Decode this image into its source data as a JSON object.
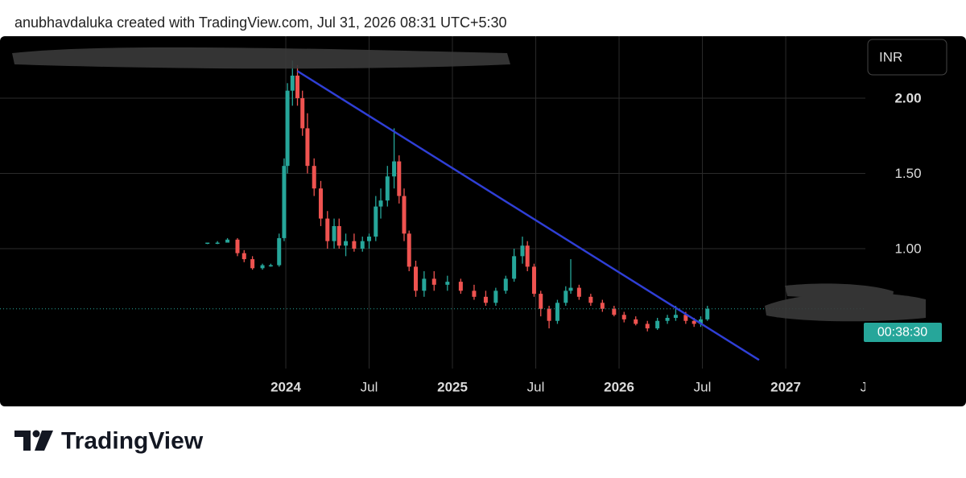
{
  "caption": "anubhavdaluka created with TradingView.com, Jul 31, 2026 08:31 UTC+5:30",
  "brand": "TradingView",
  "chart_data": {
    "type": "candlestick",
    "currency": "INR",
    "countdown": "00:38:30",
    "up_color": "#26a69a",
    "down_color": "#ef5350",
    "grid": true,
    "xlim": [
      2022.285,
      2027.478
    ],
    "xticks": [
      {
        "value": 2024,
        "label": "2024"
      },
      {
        "value": 2024.5,
        "label": "Jul"
      },
      {
        "value": 2025,
        "label": "2025"
      },
      {
        "value": 2025.5,
        "label": "Jul"
      },
      {
        "value": 2026,
        "label": "2026"
      },
      {
        "value": 2026.5,
        "label": "Jul"
      },
      {
        "value": 2027,
        "label": "2027"
      },
      {
        "value": 2027.5,
        "label": "Jul"
      }
    ],
    "ylim": [
      0.203,
      2.412
    ],
    "yticks": [
      {
        "value": 1,
        "label": "1.00"
      },
      {
        "value": 1.5,
        "label": "1.50"
      },
      {
        "value": 2,
        "label": "2.00"
      }
    ],
    "x": [
      2023.53,
      2023.59,
      2023.65,
      2023.71,
      2023.75,
      2023.8,
      2023.86,
      2023.91,
      2023.96,
      2023.99,
      2024.01,
      2024.04,
      2024.07,
      2024.1,
      2024.13,
      2024.17,
      2024.21,
      2024.25,
      2024.29,
      2024.32,
      2024.36,
      2024.41,
      2024.46,
      2024.5,
      2024.54,
      2024.57,
      2024.61,
      2024.65,
      2024.68,
      2024.71,
      2024.74,
      2024.78,
      2024.83,
      2024.89,
      2024.97,
      2025.05,
      2025.13,
      2025.2,
      2025.26,
      2025.32,
      2025.37,
      2025.42,
      2025.45,
      2025.49,
      2025.53,
      2025.58,
      2025.63,
      2025.68,
      2025.71,
      2025.76,
      2025.83,
      2025.9,
      2025.97,
      2026.03,
      2026.1,
      2026.17,
      2026.23,
      2026.29,
      2026.34,
      2026.4,
      2026.45,
      2026.49,
      2026.53
    ],
    "open": [
      1.04,
      1.04,
      1.04,
      1.06,
      0.97,
      0.93,
      0.87,
      0.89,
      0.89,
      1.07,
      1.55,
      2.05,
      2.15,
      2.0,
      1.8,
      1.55,
      1.4,
      1.2,
      1.05,
      1.15,
      1.02,
      1.05,
      1.0,
      1.05,
      1.08,
      1.28,
      1.32,
      1.48,
      1.58,
      1.35,
      1.1,
      0.88,
      0.72,
      0.8,
      0.76,
      0.78,
      0.72,
      0.68,
      0.64,
      0.72,
      0.8,
      0.95,
      1.02,
      0.88,
      0.7,
      0.6,
      0.52,
      0.64,
      0.72,
      0.74,
      0.68,
      0.64,
      0.6,
      0.56,
      0.53,
      0.5,
      0.47,
      0.52,
      0.54,
      0.56,
      0.52,
      0.5,
      0.53
    ],
    "high": [
      1.04,
      1.05,
      1.07,
      1.07,
      0.99,
      0.95,
      0.9,
      0.9,
      1.1,
      1.6,
      2.1,
      2.25,
      2.22,
      2.05,
      1.9,
      1.6,
      1.45,
      1.25,
      1.2,
      1.2,
      1.1,
      1.1,
      1.08,
      1.1,
      1.35,
      1.4,
      1.55,
      1.8,
      1.62,
      1.4,
      1.12,
      0.92,
      0.85,
      0.85,
      0.82,
      0.8,
      0.76,
      0.72,
      0.74,
      0.82,
      1.0,
      1.08,
      1.05,
      0.9,
      0.72,
      0.62,
      0.66,
      0.75,
      0.93,
      0.76,
      0.7,
      0.66,
      0.62,
      0.58,
      0.55,
      0.52,
      0.54,
      0.56,
      0.62,
      0.58,
      0.54,
      0.55,
      0.62
    ],
    "low": [
      1.03,
      1.03,
      1.04,
      0.95,
      0.91,
      0.86,
      0.86,
      0.88,
      0.88,
      1.05,
      1.5,
      1.95,
      1.95,
      1.75,
      1.5,
      1.35,
      1.15,
      1.0,
      1.0,
      1.0,
      0.95,
      0.98,
      0.98,
      1.0,
      1.05,
      1.2,
      1.28,
      1.4,
      1.3,
      1.05,
      0.85,
      0.68,
      0.68,
      0.72,
      0.72,
      0.7,
      0.66,
      0.62,
      0.62,
      0.7,
      0.78,
      0.9,
      0.85,
      0.68,
      0.55,
      0.47,
      0.5,
      0.62,
      0.7,
      0.66,
      0.62,
      0.58,
      0.55,
      0.51,
      0.49,
      0.45,
      0.46,
      0.5,
      0.52,
      0.5,
      0.48,
      0.48,
      0.52
    ],
    "close": [
      1.04,
      1.04,
      1.06,
      0.97,
      0.93,
      0.87,
      0.89,
      0.89,
      1.07,
      1.55,
      2.05,
      2.15,
      2.0,
      1.8,
      1.55,
      1.4,
      1.2,
      1.05,
      1.15,
      1.02,
      1.05,
      1.0,
      1.05,
      1.08,
      1.28,
      1.32,
      1.48,
      1.58,
      1.35,
      1.1,
      0.88,
      0.72,
      0.8,
      0.76,
      0.78,
      0.72,
      0.68,
      0.64,
      0.72,
      0.8,
      0.95,
      1.02,
      0.88,
      0.7,
      0.6,
      0.52,
      0.64,
      0.72,
      0.74,
      0.68,
      0.64,
      0.6,
      0.56,
      0.53,
      0.5,
      0.47,
      0.52,
      0.54,
      0.56,
      0.52,
      0.5,
      0.53,
      0.6
    ],
    "trendline": {
      "x": [
        2024.07,
        2026.84
      ],
      "y": [
        2.18,
        0.26
      ],
      "color": "#2f3fd6"
    }
  }
}
